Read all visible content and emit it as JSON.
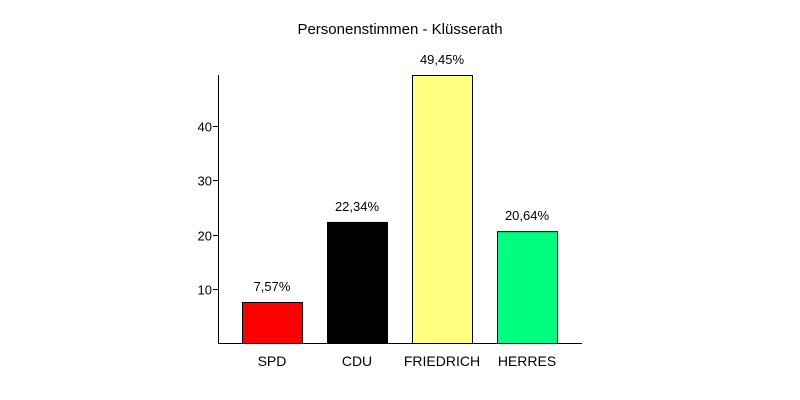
{
  "chart_data": {
    "type": "bar",
    "title": "Personenstimmen - Klüsserath",
    "xlabel": "",
    "ylabel": "",
    "categories": [
      "SPD",
      "CDU",
      "FRIEDRICH",
      "HERRES"
    ],
    "values": [
      7.57,
      22.34,
      49.45,
      20.64
    ],
    "data_labels": [
      "7,57%",
      "22,34%",
      "49,45%",
      "20,64%"
    ],
    "colors": [
      "#ff0000",
      "#000000",
      "#ffff80",
      "#00ff80"
    ],
    "yticks": [
      10,
      20,
      30,
      40
    ],
    "ylim": [
      0,
      49.45
    ],
    "grid": false,
    "legend": "none"
  }
}
